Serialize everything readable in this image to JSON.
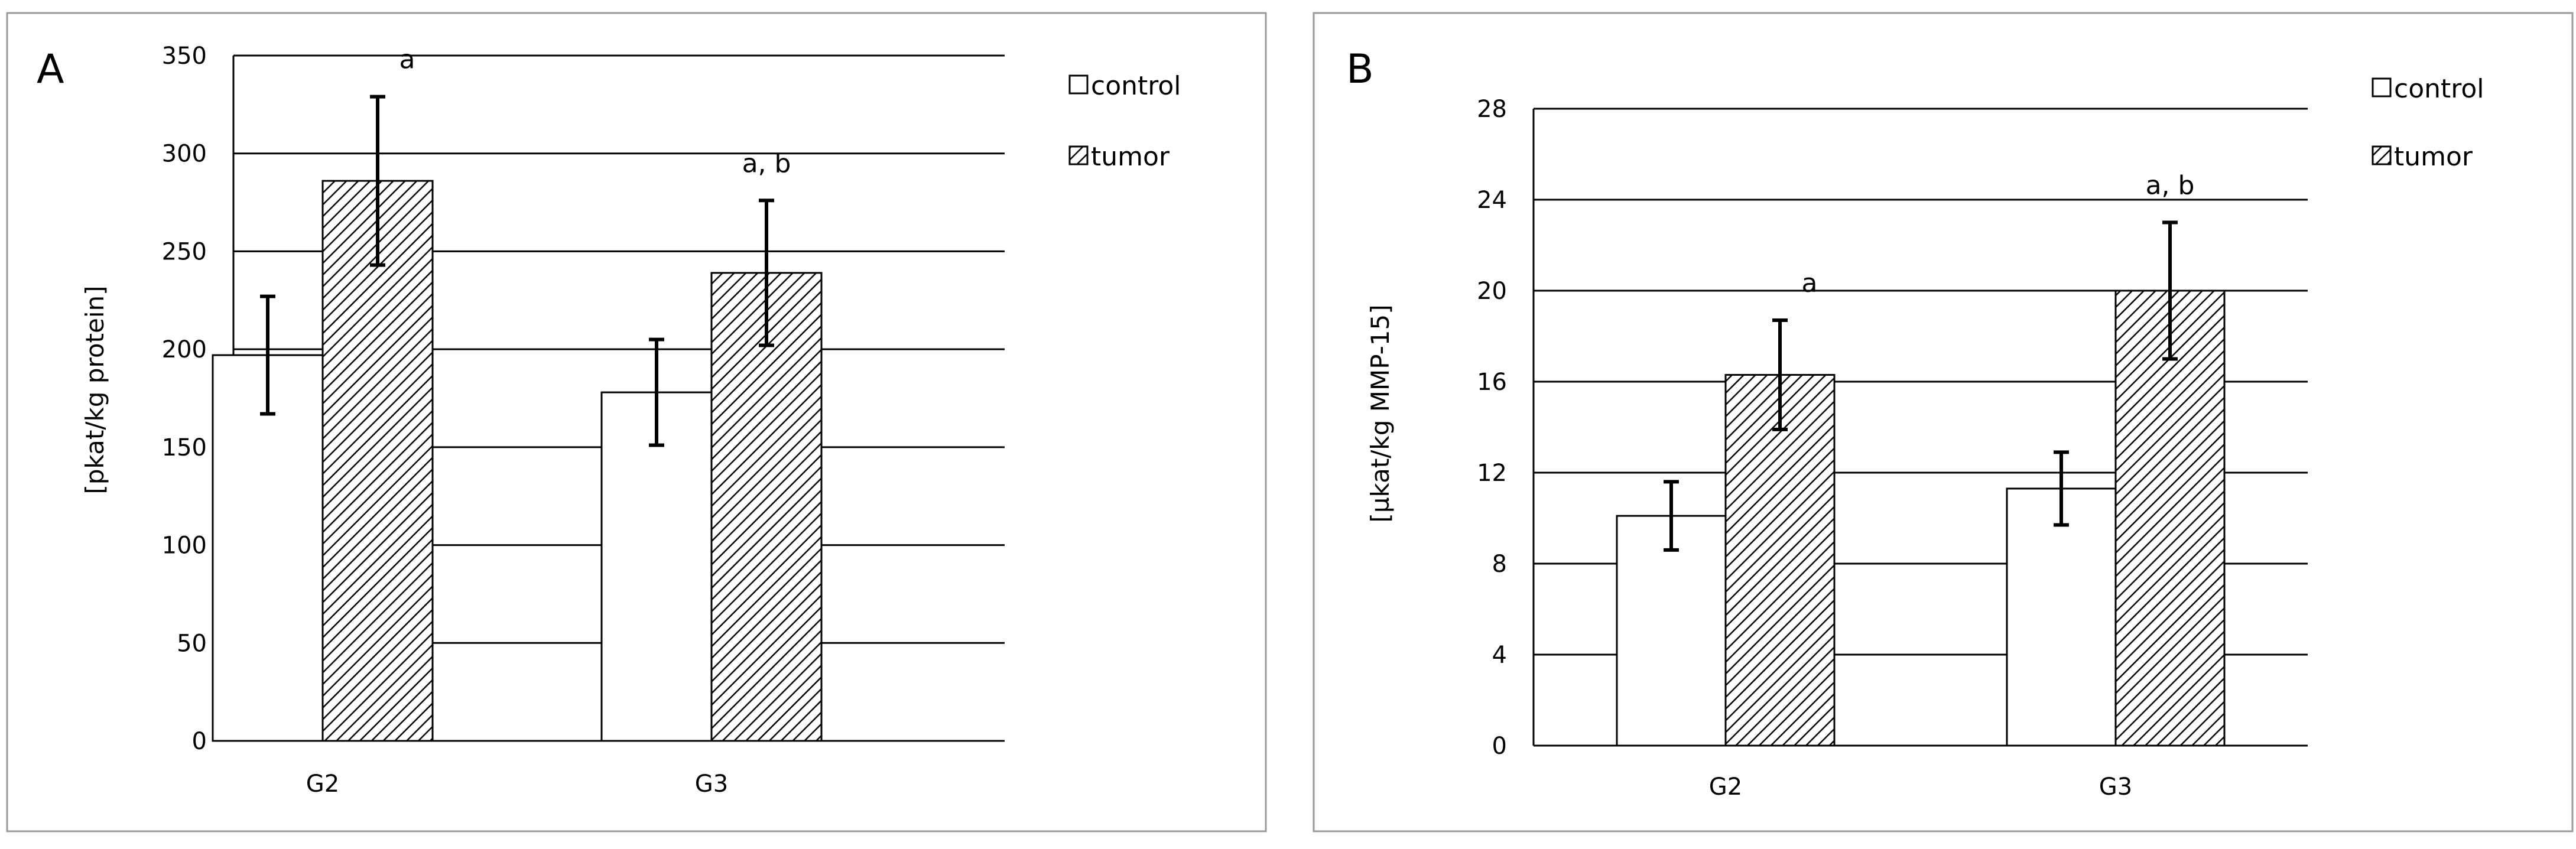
{
  "chart_data": [
    {
      "type": "bar",
      "panel_label": "A",
      "categories": [
        "G2",
        "G3"
      ],
      "series": [
        {
          "name": "control",
          "values": [
            197,
            178
          ],
          "errors": [
            30,
            27
          ]
        },
        {
          "name": "tumor",
          "values": [
            286,
            239
          ],
          "errors": [
            43,
            37
          ]
        }
      ],
      "annotations": [
        {
          "category": "G2",
          "series": "tumor",
          "text": "a"
        },
        {
          "category": "G3",
          "series": "tumor",
          "text": "a, b"
        }
      ],
      "xlabel": "",
      "ylabel": "[pkat/kg protein]",
      "ylim": [
        0,
        350
      ],
      "yticks": [
        0,
        50,
        100,
        150,
        200,
        250,
        300,
        350
      ],
      "grid": true,
      "legend_position": "top-right"
    },
    {
      "type": "bar",
      "panel_label": "B",
      "categories": [
        "G2",
        "G3"
      ],
      "series": [
        {
          "name": "control",
          "values": [
            10.1,
            11.3
          ],
          "errors": [
            1.5,
            1.6
          ]
        },
        {
          "name": "tumor",
          "values": [
            16.3,
            20.0
          ],
          "errors": [
            2.4,
            3.0
          ]
        }
      ],
      "annotations": [
        {
          "category": "G2",
          "series": "tumor",
          "text": "a"
        },
        {
          "category": "G3",
          "series": "tumor",
          "text": "a, b"
        }
      ],
      "xlabel": "",
      "ylabel": "[µkat/kg MMP-15]",
      "ylim": [
        0,
        28
      ],
      "yticks": [
        0,
        4,
        8,
        12,
        16,
        20,
        24,
        28
      ],
      "grid": true,
      "legend_position": "top-right"
    }
  ]
}
